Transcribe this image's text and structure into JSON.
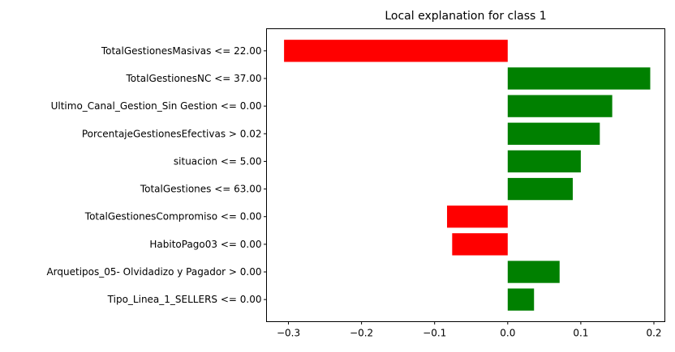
{
  "chart_data": {
    "type": "bar",
    "orientation": "horizontal",
    "title": "Local explanation for class 1",
    "xlabel": "",
    "ylabel": "",
    "xlim": [
      -0.33,
      0.215
    ],
    "xticks": [
      -0.3,
      -0.2,
      -0.1,
      0.0,
      0.1,
      0.2
    ],
    "xtick_labels": [
      "−0.3",
      "−0.2",
      "−0.1",
      "0.0",
      "0.1",
      "0.2"
    ],
    "grid": false,
    "legend": "none",
    "categories": [
      "TotalGestionesMasivas <= 22.00",
      "TotalGestionesNC <= 37.00",
      "Ultimo_Canal_Gestion_Sin Gestion <= 0.00",
      "PorcentajeGestionesEfectivas > 0.02",
      "situacion <= 5.00",
      "TotalGestiones <= 63.00",
      "TotalGestionesCompromiso <= 0.00",
      "HabitoPago03 <= 0.00",
      "Arquetipos_05- Olvidadizo y Pagador > 0.00",
      "Tipo_Linea_1_SELLERS <= 0.00"
    ],
    "values": [
      -0.306,
      0.195,
      0.143,
      0.126,
      0.1,
      0.089,
      -0.083,
      -0.076,
      0.071,
      0.036
    ],
    "colors": {
      "positive": "#008000",
      "negative": "#ff0000"
    }
  }
}
